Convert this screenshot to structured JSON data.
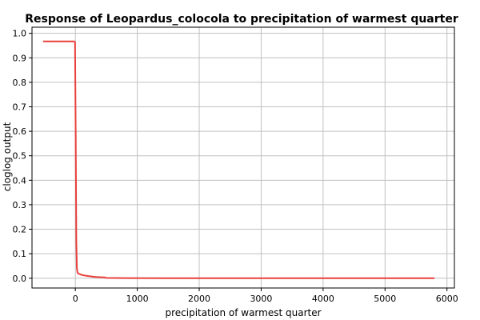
{
  "chart_data": {
    "type": "line",
    "title": "Response of Leopardus_colocola to precipitation of warmest quarter",
    "xlabel": "precipitation of warmest quarter",
    "ylabel": "cloglog output",
    "xlim": [
      -700,
      6120
    ],
    "ylim": [
      -0.04,
      1.025
    ],
    "xticks": [
      0,
      1000,
      2000,
      3000,
      4000,
      5000,
      6000
    ],
    "yticks": [
      0.0,
      0.1,
      0.2,
      0.3,
      0.4,
      0.5,
      0.6,
      0.7,
      0.8,
      0.9,
      1.0
    ],
    "xtick_labels": [
      "0",
      "1000",
      "2000",
      "3000",
      "4000",
      "5000",
      "6000"
    ],
    "ytick_labels": [
      "0.0",
      "0.1",
      "0.2",
      "0.3",
      "0.4",
      "0.5",
      "0.6",
      "0.7",
      "0.8",
      "0.9",
      "1.0"
    ],
    "grid": true,
    "series": [
      {
        "color": "#e8403c",
        "x": [
          -520,
          -20,
          -5,
          5,
          15,
          25,
          35,
          55,
          80,
          110,
          150,
          200,
          260,
          330,
          400,
          480,
          500,
          800,
          1500,
          3000,
          4500,
          5800
        ],
        "y": [
          0.967,
          0.967,
          0.965,
          0.6,
          0.15,
          0.04,
          0.022,
          0.018,
          0.016,
          0.013,
          0.011,
          0.009,
          0.007,
          0.005,
          0.004,
          0.003,
          0.001,
          0.0005,
          0.0003,
          0.0002,
          0.0001,
          0.0001
        ]
      }
    ]
  }
}
